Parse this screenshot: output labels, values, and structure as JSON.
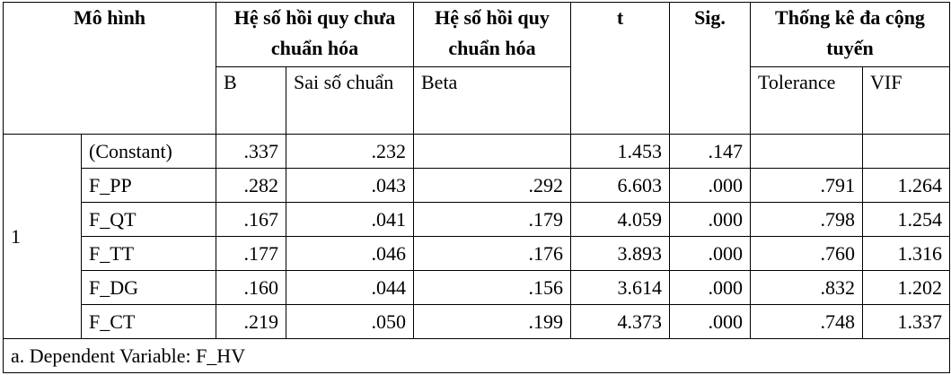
{
  "headers": {
    "model": "Mô hình",
    "unstd": "Hệ số hồi quy chưa chuẩn hóa",
    "std": "Hệ số hồi quy chuẩn hóa",
    "t": "t",
    "sig": "Sig.",
    "collin": "Thống kê đa cộng tuyến",
    "b": "B",
    "se": "Sai số chuẩn",
    "beta": "Beta",
    "tol": "Tolerance",
    "vif": "VIF"
  },
  "model_number": "1",
  "rows": [
    {
      "name": "(Constant)",
      "b": ".337",
      "se": ".232",
      "beta": "",
      "t": "1.453",
      "sig": ".147",
      "tol": "",
      "vif": ""
    },
    {
      "name": "F_PP",
      "b": ".282",
      "se": ".043",
      "beta": ".292",
      "t": "6.603",
      "sig": ".000",
      "tol": ".791",
      "vif": "1.264"
    },
    {
      "name": "F_QT",
      "b": ".167",
      "se": ".041",
      "beta": ".179",
      "t": "4.059",
      "sig": ".000",
      "tol": ".798",
      "vif": "1.254"
    },
    {
      "name": "F_TT",
      "b": ".177",
      "se": ".046",
      "beta": ".176",
      "t": "3.893",
      "sig": ".000",
      "tol": ".760",
      "vif": "1.316"
    },
    {
      "name": "F_DG",
      "b": ".160",
      "se": ".044",
      "beta": ".156",
      "t": "3.614",
      "sig": ".000",
      "tol": ".832",
      "vif": "1.202"
    },
    {
      "name": "F_CT",
      "b": ".219",
      "se": ".050",
      "beta": ".199",
      "t": "4.373",
      "sig": ".000",
      "tol": ".748",
      "vif": "1.337"
    }
  ],
  "footnote": "a. Dependent Variable: F_HV"
}
